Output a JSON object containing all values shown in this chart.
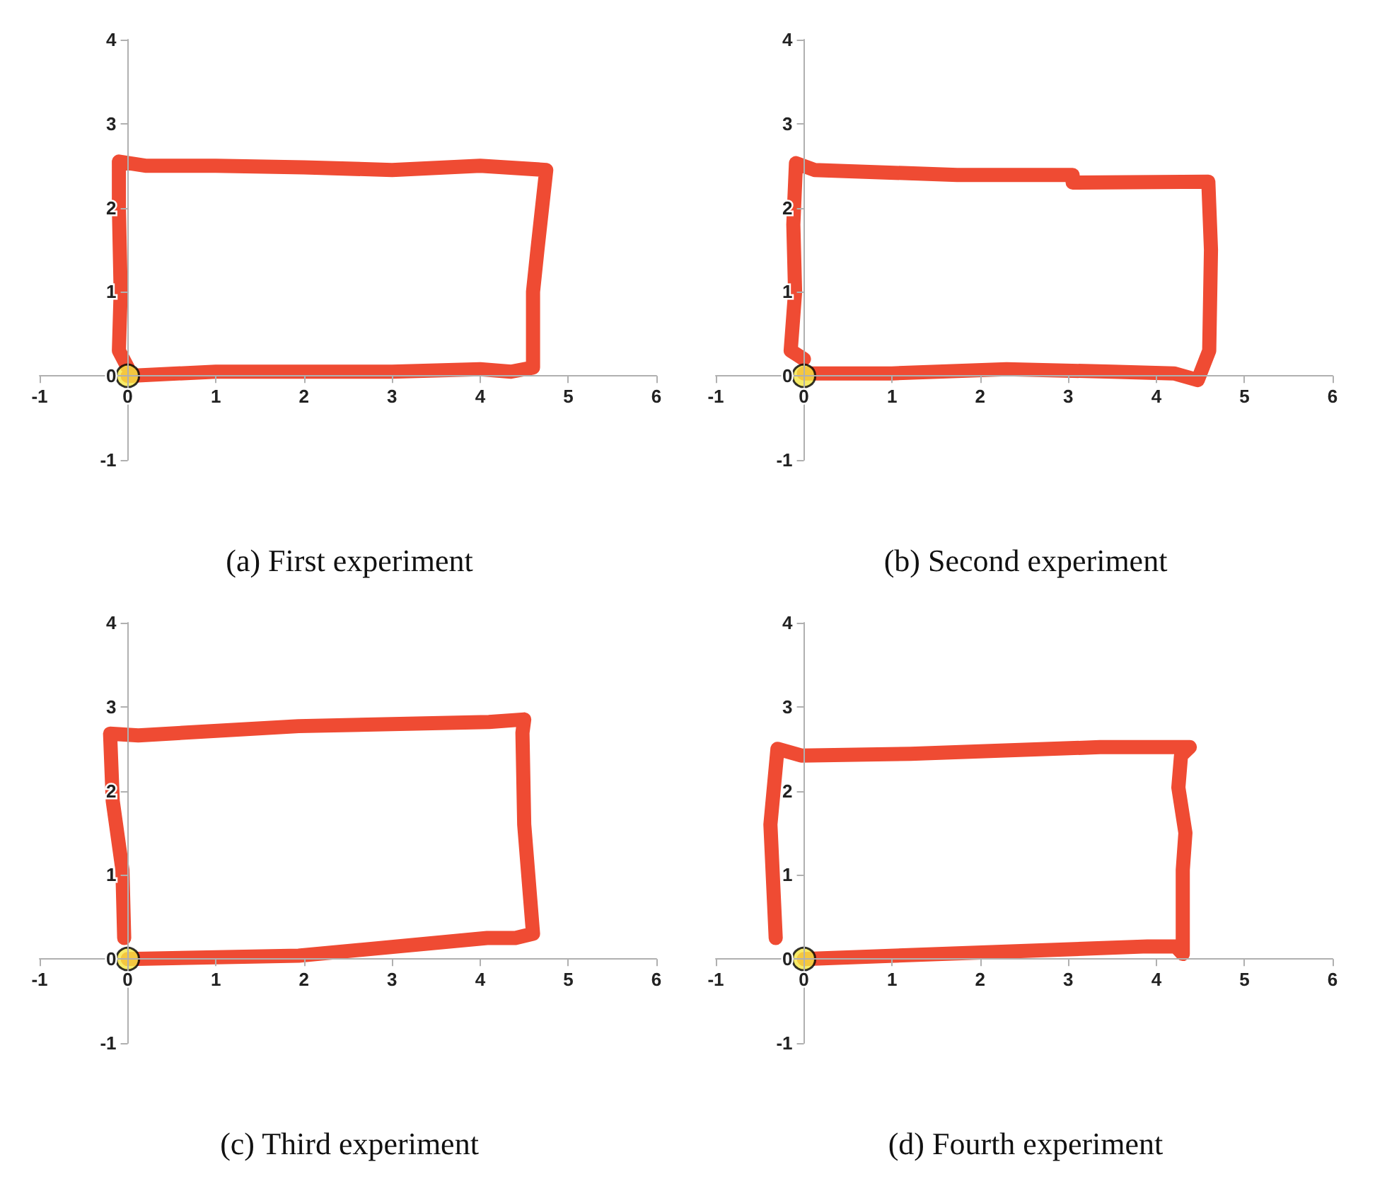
{
  "chart_data": [
    {
      "type": "line",
      "title": "(a) First experiment",
      "xlim": [
        -1,
        6
      ],
      "ylim": [
        -1,
        4
      ],
      "xticks": [
        -1,
        0,
        1,
        2,
        3,
        4,
        5,
        6
      ],
      "yticks": [
        -1,
        0,
        1,
        2,
        3,
        4
      ],
      "grid": false,
      "line_style": "solid",
      "series": [
        {
          "color": "#ef4b33",
          "marker": "none",
          "x": [
            0,
            1,
            2,
            3,
            4,
            4.35,
            4.6,
            4.6,
            4.65,
            4.75,
            4,
            3,
            2,
            1,
            0.2,
            -0.1,
            -0.1,
            -0.08,
            -0.1,
            0
          ],
          "values": [
            0,
            0.05,
            0.05,
            0.05,
            0.08,
            0.05,
            0.1,
            1.0,
            1.5,
            2.45,
            2.5,
            2.45,
            2.48,
            2.5,
            2.5,
            2.55,
            2.0,
            1.0,
            0.3,
            0.1
          ]
        },
        {
          "type": "scatter",
          "color": "#f5e642",
          "marker": "circle",
          "x": [
            0
          ],
          "values": [
            0
          ]
        }
      ]
    },
    {
      "type": "line",
      "title": "(b) Second experiment",
      "xlim": [
        -1,
        6
      ],
      "ylim": [
        -1,
        4
      ],
      "xticks": [
        -1,
        0,
        1,
        2,
        3,
        4,
        5,
        6
      ],
      "yticks": [
        -1,
        0,
        1,
        2,
        3,
        4
      ],
      "grid": false,
      "line_style": "solid",
      "series": [
        {
          "color": "#ef4b33",
          "marker": "none",
          "x": [
            0,
            1,
            2.3,
            3.5,
            4.2,
            4.47,
            4.6,
            4.62,
            4.59,
            3.05,
            3.05,
            1.74,
            0.12,
            -0.09,
            -0.12,
            -0.1,
            -0.15,
            0
          ],
          "values": [
            0.03,
            0.03,
            0.08,
            0.05,
            0.03,
            -0.05,
            0.3,
            1.5,
            2.31,
            2.3,
            2.39,
            2.39,
            2.45,
            2.53,
            1.8,
            1.0,
            0.3,
            0.2
          ]
        },
        {
          "type": "scatter",
          "color": "#f5e642",
          "marker": "circle",
          "x": [
            0
          ],
          "values": [
            0
          ]
        }
      ]
    },
    {
      "type": "line",
      "title": "(c) Third experiment",
      "xlim": [
        -1,
        6
      ],
      "ylim": [
        -1,
        4
      ],
      "xticks": [
        -1,
        0,
        1,
        2,
        3,
        4,
        5,
        6
      ],
      "yticks": [
        -1,
        0,
        1,
        2,
        3,
        4
      ],
      "grid": false,
      "line_style": "solid",
      "series": [
        {
          "color": "#ef4b33",
          "marker": "none",
          "x": [
            0,
            1.94,
            4.08,
            4.4,
            4.6,
            4.5,
            4.48,
            4.5,
            4.1,
            1.94,
            0.12,
            -0.2,
            -0.17,
            -0.06,
            -0.04
          ],
          "values": [
            0,
            0.04,
            0.25,
            0.25,
            0.3,
            1.6,
            2.69,
            2.85,
            2.82,
            2.77,
            2.66,
            2.68,
            1.88,
            1.06,
            0.25
          ]
        },
        {
          "type": "scatter",
          "color": "#f5e642",
          "marker": "circle",
          "x": [
            0
          ],
          "values": [
            0
          ]
        }
      ]
    },
    {
      "type": "line",
      "title": "(d) Fourth experiment",
      "xlim": [
        -1,
        6
      ],
      "ylim": [
        -1,
        4
      ],
      "xticks": [
        -1,
        0,
        1,
        2,
        3,
        4,
        5,
        6
      ],
      "yticks": [
        -1,
        0,
        1,
        2,
        3,
        4
      ],
      "grid": false,
      "line_style": "solid",
      "series": [
        {
          "color": "#ef4b33",
          "marker": "none",
          "x": [
            0,
            3.9,
            4.22,
            4.3,
            4.3,
            4.33,
            4.25,
            4.28,
            4.38,
            3.36,
            1.21,
            -0.03,
            -0.3,
            -0.38,
            -0.32
          ],
          "values": [
            0,
            0.15,
            0.15,
            0.06,
            1.06,
            1.5,
            2.04,
            2.42,
            2.52,
            2.52,
            2.44,
            2.42,
            2.5,
            1.6,
            0.25
          ]
        },
        {
          "type": "scatter",
          "color": "#f5e642",
          "marker": "circle",
          "x": [
            0
          ],
          "values": [
            0
          ]
        }
      ]
    }
  ]
}
